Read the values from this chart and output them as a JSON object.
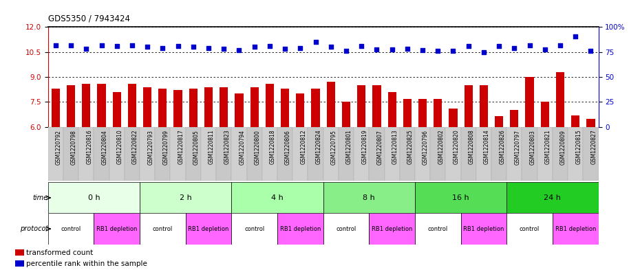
{
  "title": "GDS5350 / 7943424",
  "samples": [
    "GSM1220792",
    "GSM1220798",
    "GSM1220816",
    "GSM1220804",
    "GSM1220810",
    "GSM1220822",
    "GSM1220793",
    "GSM1220799",
    "GSM1220817",
    "GSM1220805",
    "GSM1220811",
    "GSM1220823",
    "GSM1220794",
    "GSM1220800",
    "GSM1220818",
    "GSM1220806",
    "GSM1220812",
    "GSM1220824",
    "GSM1220795",
    "GSM1220801",
    "GSM1220819",
    "GSM1220807",
    "GSM1220813",
    "GSM1220825",
    "GSM1220796",
    "GSM1220802",
    "GSM1220820",
    "GSM1220808",
    "GSM1220814",
    "GSM1220826",
    "GSM1220797",
    "GSM1220803",
    "GSM1220821",
    "GSM1220809",
    "GSM1220815",
    "GSM1220827"
  ],
  "bar_values": [
    8.3,
    8.5,
    8.6,
    8.6,
    8.1,
    8.6,
    8.4,
    8.3,
    8.2,
    8.3,
    8.4,
    8.4,
    8.0,
    8.4,
    8.6,
    8.3,
    8.0,
    8.3,
    8.7,
    7.5,
    8.5,
    8.5,
    8.1,
    7.7,
    7.7,
    7.7,
    7.1,
    8.5,
    8.5,
    6.65,
    7.0,
    9.0,
    7.5,
    9.3,
    6.7,
    6.5
  ],
  "dot_values": [
    10.9,
    10.9,
    10.7,
    10.9,
    10.85,
    10.9,
    10.8,
    10.75,
    10.85,
    10.8,
    10.75,
    10.7,
    10.6,
    10.8,
    10.85,
    10.7,
    10.75,
    11.1,
    10.8,
    10.55,
    10.85,
    10.65,
    10.65,
    10.7,
    10.6,
    10.55,
    10.55,
    10.85,
    10.5,
    10.85,
    10.75,
    10.9,
    10.65,
    10.9,
    11.45,
    10.55
  ],
  "ylim_left": [
    6,
    12
  ],
  "ylim_right": [
    0,
    100
  ],
  "yticks_left": [
    6,
    7.5,
    9,
    10.5,
    12
  ],
  "yticks_right": [
    0,
    25,
    50,
    75,
    100
  ],
  "bar_color": "#cc0000",
  "dot_color": "#0000cc",
  "bg_color": "#ffffff",
  "time_groups": [
    {
      "label": "0 h",
      "start": 0,
      "end": 6,
      "color": "#e8ffe8"
    },
    {
      "label": "2 h",
      "start": 6,
      "end": 12,
      "color": "#ccffcc"
    },
    {
      "label": "4 h",
      "start": 12,
      "end": 18,
      "color": "#aaffaa"
    },
    {
      "label": "8 h",
      "start": 18,
      "end": 24,
      "color": "#88ee88"
    },
    {
      "label": "16 h",
      "start": 24,
      "end": 30,
      "color": "#55dd55"
    },
    {
      "label": "24 h",
      "start": 30,
      "end": 36,
      "color": "#22cc22"
    }
  ],
  "protocol_groups": [
    {
      "label": "control",
      "start": 0,
      "end": 3,
      "color": "#ffffff"
    },
    {
      "label": "RB1 depletion",
      "start": 3,
      "end": 6,
      "color": "#ff66ff"
    },
    {
      "label": "control",
      "start": 6,
      "end": 9,
      "color": "#ffffff"
    },
    {
      "label": "RB1 depletion",
      "start": 9,
      "end": 12,
      "color": "#ff66ff"
    },
    {
      "label": "control",
      "start": 12,
      "end": 15,
      "color": "#ffffff"
    },
    {
      "label": "RB1 depletion",
      "start": 15,
      "end": 18,
      "color": "#ff66ff"
    },
    {
      "label": "control",
      "start": 18,
      "end": 21,
      "color": "#ffffff"
    },
    {
      "label": "RB1 depletion",
      "start": 21,
      "end": 24,
      "color": "#ff66ff"
    },
    {
      "label": "control",
      "start": 24,
      "end": 27,
      "color": "#ffffff"
    },
    {
      "label": "RB1 depletion",
      "start": 27,
      "end": 30,
      "color": "#ff66ff"
    },
    {
      "label": "control",
      "start": 30,
      "end": 33,
      "color": "#ffffff"
    },
    {
      "label": "RB1 depletion",
      "start": 33,
      "end": 36,
      "color": "#ff66ff"
    }
  ],
  "legend_items": [
    {
      "label": "transformed count",
      "color": "#cc0000"
    },
    {
      "label": "percentile rank within the sample",
      "color": "#0000cc"
    }
  ]
}
